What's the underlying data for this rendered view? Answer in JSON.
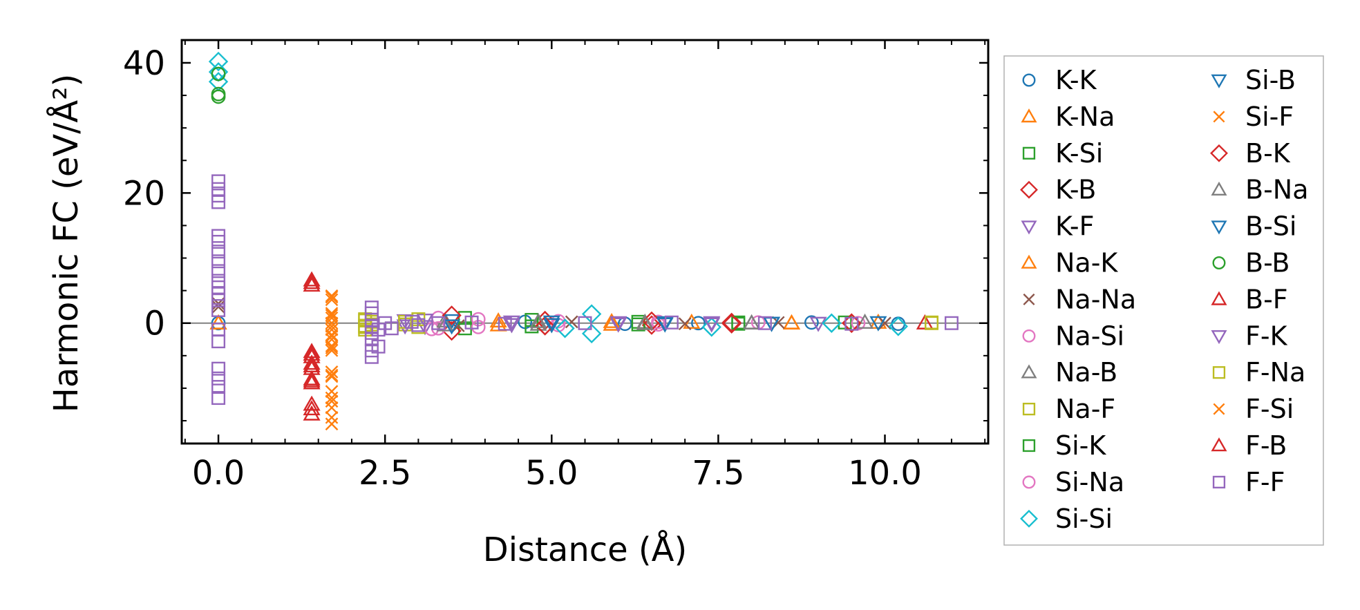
{
  "chart_data": {
    "type": "scatter",
    "title": "",
    "xlabel": "Distance (Å)",
    "ylabel": "Harmonic FC (eV/Å²)",
    "xlim": [
      -0.55,
      11.55
    ],
    "ylim": [
      -18.5,
      43.5
    ],
    "xticks": [
      0.0,
      2.5,
      5.0,
      7.5,
      10.0
    ],
    "xtick_labels": [
      "0.0",
      "2.5",
      "5.0",
      "7.5",
      "10.0"
    ],
    "yticks": [
      0,
      20,
      40
    ],
    "ytick_labels": [
      "0",
      "20",
      "40"
    ],
    "reference_line_y": 0,
    "grid": false,
    "legend_position": "outside-right",
    "series": [
      {
        "name": "K-K",
        "marker": "circle",
        "color": "#1f77b4",
        "points": [
          [
            0,
            0
          ],
          [
            4.6,
            0.2
          ],
          [
            6.1,
            -0.1
          ],
          [
            7.2,
            0.0
          ],
          [
            8.9,
            0.1
          ],
          [
            10.2,
            -0.1
          ]
        ]
      },
      {
        "name": "K-Na",
        "marker": "triangle-up",
        "color": "#ff7f0e",
        "points": [
          [
            0,
            0
          ],
          [
            4.2,
            0.3
          ],
          [
            5.9,
            -0.2
          ],
          [
            7.1,
            0.1
          ],
          [
            8.6,
            0.0
          ],
          [
            9.9,
            0.1
          ]
        ]
      },
      {
        "name": "K-Si",
        "marker": "square",
        "color": "#2ca02c",
        "points": [
          [
            3.7,
            -0.8
          ],
          [
            4.7,
            -0.5
          ],
          [
            6.3,
            0.2
          ],
          [
            7.8,
            -0.1
          ],
          [
            9.4,
            0.1
          ]
        ]
      },
      {
        "name": "K-B",
        "marker": "diamond",
        "color": "#d62728",
        "points": [
          [
            3.5,
            -1.2
          ],
          [
            4.9,
            0.4
          ],
          [
            6.5,
            -0.3
          ],
          [
            7.7,
            0.1
          ],
          [
            9.5,
            0.0
          ]
        ]
      },
      {
        "name": "K-F",
        "marker": "triangle-down",
        "color": "#9467bd",
        "points": [
          [
            2.8,
            0.4
          ],
          [
            3.1,
            -0.5
          ],
          [
            4.4,
            0.2
          ],
          [
            6.0,
            -0.1
          ],
          [
            7.4,
            0.1
          ],
          [
            9.0,
            0.0
          ]
        ]
      },
      {
        "name": "Na-K",
        "marker": "triangle-up",
        "color": "#ff7f0e",
        "points": [
          [
            0,
            0
          ],
          [
            4.2,
            -0.3
          ],
          [
            5.9,
            0.2
          ],
          [
            8.6,
            0.0
          ]
        ]
      },
      {
        "name": "Na-Na",
        "marker": "x",
        "color": "#8c564b",
        "points": [
          [
            0,
            3.0
          ],
          [
            0,
            2.5
          ],
          [
            3.6,
            -0.4
          ],
          [
            5.3,
            0.2
          ],
          [
            7.0,
            -0.1
          ],
          [
            8.4,
            0.1
          ],
          [
            10.0,
            0.0
          ]
        ]
      },
      {
        "name": "Na-Si",
        "marker": "circle",
        "color": "#e377c2",
        "points": [
          [
            3.3,
            0.8
          ],
          [
            3.2,
            -0.9
          ],
          [
            3.9,
            -0.6
          ],
          [
            5.1,
            0.3
          ],
          [
            6.6,
            -0.2
          ],
          [
            8.1,
            0.1
          ],
          [
            9.6,
            0.0
          ]
        ]
      },
      {
        "name": "Na-B",
        "marker": "triangle-up",
        "color": "#7f7f7f",
        "points": [
          [
            3.4,
            0.3
          ],
          [
            4.8,
            -0.2
          ],
          [
            6.4,
            0.1
          ],
          [
            8.0,
            0.0
          ],
          [
            9.7,
            0.1
          ]
        ]
      },
      {
        "name": "Na-F",
        "marker": "square",
        "color": "#bcbd22",
        "points": [
          [
            2.2,
            0.6
          ],
          [
            2.2,
            -0.4
          ],
          [
            2.2,
            -1.0
          ],
          [
            2.3,
            0.2
          ],
          [
            2.8,
            -0.2
          ],
          [
            3.0,
            -0.6
          ],
          [
            10.7,
            0.0
          ]
        ]
      },
      {
        "name": "Si-K",
        "marker": "square",
        "color": "#2ca02c",
        "points": [
          [
            3.7,
            0.8
          ],
          [
            4.7,
            0.5
          ],
          [
            6.3,
            -0.2
          ],
          [
            7.8,
            0.1
          ]
        ]
      },
      {
        "name": "Si-Na",
        "marker": "circle",
        "color": "#e377c2",
        "points": [
          [
            3.3,
            -0.8
          ],
          [
            3.9,
            0.6
          ],
          [
            5.1,
            -0.3
          ],
          [
            6.6,
            0.2
          ]
        ]
      },
      {
        "name": "Si-Si",
        "marker": "diamond",
        "color": "#17becf",
        "points": [
          [
            0,
            40.2
          ],
          [
            0,
            38.6
          ],
          [
            0,
            37.1
          ],
          [
            5.2,
            -0.8
          ],
          [
            5.6,
            1.4
          ],
          [
            5.6,
            -1.6
          ],
          [
            7.4,
            -0.6
          ],
          [
            9.2,
            0.0
          ],
          [
            10.2,
            -0.5
          ]
        ]
      },
      {
        "name": "Si-B",
        "marker": "triangle-down",
        "color": "#1f77b4",
        "points": [
          [
            3.5,
            0.4
          ],
          [
            5.0,
            -0.2
          ],
          [
            6.7,
            0.1
          ],
          [
            8.3,
            0.0
          ],
          [
            9.9,
            0.1
          ]
        ]
      },
      {
        "name": "Si-F",
        "marker": "x",
        "color": "#ff7f0e",
        "points": [
          [
            1.7,
            4.2
          ],
          [
            1.7,
            3.6
          ],
          [
            1.7,
            1.5
          ],
          [
            1.7,
            0.8
          ],
          [
            1.7,
            0.0
          ],
          [
            1.7,
            -1.0
          ],
          [
            1.7,
            -1.8
          ],
          [
            1.7,
            -2.5
          ],
          [
            1.7,
            -3.5
          ],
          [
            1.7,
            -4.2
          ],
          [
            1.7,
            -7.5
          ],
          [
            1.7,
            -8.2
          ],
          [
            1.7,
            -10.5
          ],
          [
            1.7,
            -11.5
          ],
          [
            1.7,
            -13.0
          ],
          [
            1.7,
            -14.5
          ],
          [
            1.7,
            -15.5
          ]
        ]
      },
      {
        "name": "B-K",
        "marker": "diamond",
        "color": "#d62728",
        "points": [
          [
            3.5,
            1.2
          ],
          [
            4.9,
            -0.4
          ],
          [
            6.5,
            0.3
          ],
          [
            7.7,
            -0.1
          ],
          [
            9.5,
            0.0
          ]
        ]
      },
      {
        "name": "B-Na",
        "marker": "triangle-up",
        "color": "#7f7f7f",
        "points": [
          [
            3.4,
            -0.3
          ],
          [
            4.8,
            0.2
          ],
          [
            6.4,
            -0.1
          ],
          [
            8.0,
            0.0
          ]
        ]
      },
      {
        "name": "B-Si",
        "marker": "triangle-down",
        "color": "#1f77b4",
        "points": [
          [
            3.5,
            -0.4
          ],
          [
            5.0,
            0.2
          ],
          [
            6.7,
            -0.1
          ],
          [
            8.3,
            0.0
          ]
        ]
      },
      {
        "name": "B-B",
        "marker": "circle",
        "color": "#2ca02c",
        "points": [
          [
            0,
            38.3
          ],
          [
            0,
            35.2
          ],
          [
            0,
            34.8
          ]
        ]
      },
      {
        "name": "B-F",
        "marker": "triangle-up",
        "color": "#d62728",
        "points": [
          [
            1.4,
            6.6
          ],
          [
            1.4,
            5.8
          ],
          [
            1.4,
            -4.4
          ],
          [
            1.4,
            -5.2
          ],
          [
            1.4,
            -6.2
          ],
          [
            1.4,
            -7.0
          ],
          [
            1.4,
            -8.6
          ],
          [
            1.4,
            -9.2
          ],
          [
            1.4,
            -12.5
          ],
          [
            1.4,
            -14.0
          ],
          [
            10.6,
            0.0
          ]
        ]
      },
      {
        "name": "F-K",
        "marker": "triangle-down",
        "color": "#9467bd",
        "points": [
          [
            2.8,
            -0.4
          ],
          [
            3.1,
            0.5
          ],
          [
            4.4,
            -0.2
          ],
          [
            6.0,
            0.1
          ],
          [
            7.4,
            -0.1
          ]
        ]
      },
      {
        "name": "F-Na",
        "marker": "square",
        "color": "#bcbd22",
        "points": [
          [
            2.2,
            -0.6
          ],
          [
            2.2,
            0.4
          ],
          [
            2.3,
            -0.2
          ],
          [
            2.8,
            0.2
          ],
          [
            3.0,
            0.6
          ],
          [
            10.7,
            0.1
          ]
        ]
      },
      {
        "name": "F-Si",
        "marker": "x",
        "color": "#ff7f0e",
        "points": [
          [
            1.7,
            4.0
          ],
          [
            1.7,
            1.2
          ],
          [
            1.7,
            -0.5
          ],
          [
            1.7,
            -2.0
          ],
          [
            1.7,
            -3.8
          ],
          [
            1.7,
            -8.0
          ],
          [
            1.7,
            -12.0
          ]
        ]
      },
      {
        "name": "F-B",
        "marker": "triangle-up",
        "color": "#d62728",
        "points": [
          [
            1.4,
            6.2
          ],
          [
            1.4,
            -4.8
          ],
          [
            1.4,
            -6.6
          ],
          [
            1.4,
            -8.9
          ],
          [
            1.4,
            -13.2
          ]
        ]
      },
      {
        "name": "F-F",
        "marker": "square",
        "color": "#9467bd",
        "points": [
          [
            0,
            21.8
          ],
          [
            0,
            20.6
          ],
          [
            0,
            19.6
          ],
          [
            0,
            18.6
          ],
          [
            0,
            13.4
          ],
          [
            0,
            12.5
          ],
          [
            0,
            11.0
          ],
          [
            0,
            9.5
          ],
          [
            0,
            8.0
          ],
          [
            0,
            6.5
          ],
          [
            0,
            5.5
          ],
          [
            0,
            4.5
          ],
          [
            0,
            3.5
          ],
          [
            0,
            2.0
          ],
          [
            0,
            -1.0
          ],
          [
            0,
            -2.8
          ],
          [
            0,
            -7.0
          ],
          [
            0,
            -8.5
          ],
          [
            0,
            -9.8
          ],
          [
            0,
            -11.5
          ],
          [
            2.3,
            2.4
          ],
          [
            2.3,
            1.5
          ],
          [
            2.3,
            0.5
          ],
          [
            2.3,
            -0.5
          ],
          [
            2.3,
            -1.5
          ],
          [
            2.3,
            -2.5
          ],
          [
            2.3,
            -4.2
          ],
          [
            2.3,
            -5.2
          ],
          [
            2.4,
            -1.0
          ],
          [
            2.4,
            -3.6
          ],
          [
            2.5,
            0.0
          ],
          [
            2.6,
            -0.8
          ],
          [
            2.9,
            0.2
          ],
          [
            3.0,
            -0.3
          ],
          [
            3.3,
            0.0
          ],
          [
            3.8,
            0.1
          ],
          [
            4.3,
            -0.1
          ],
          [
            5.5,
            0.0
          ],
          [
            6.8,
            0.1
          ],
          [
            8.2,
            0.0
          ],
          [
            9.5,
            -0.1
          ],
          [
            11.0,
            0.0
          ]
        ]
      }
    ]
  }
}
